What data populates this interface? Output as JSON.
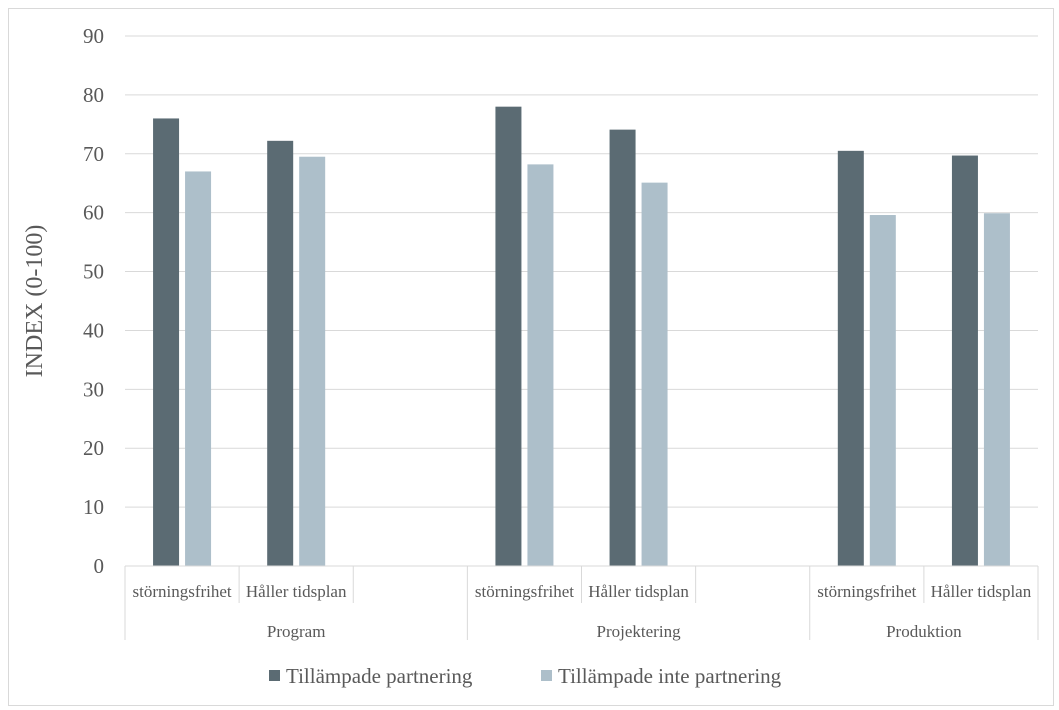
{
  "chart_data": {
    "type": "bar",
    "title": "",
    "ylabel": "INDEX (0-100)",
    "xlabel": "",
    "ylim": [
      0,
      90
    ],
    "yticks": [
      0,
      10,
      20,
      30,
      40,
      50,
      60,
      70,
      80,
      90
    ],
    "grid": true,
    "legend_position": "bottom",
    "groups": [
      {
        "label": "Program",
        "categories": [
          "störningsfrihet",
          "Håller tidsplan",
          ""
        ]
      },
      {
        "label": "Projektering",
        "categories": [
          "störningsfrihet",
          "Håller tidsplan",
          ""
        ]
      },
      {
        "label": "Produktion",
        "categories": [
          "störningsfrihet",
          "Håller tidsplan"
        ]
      }
    ],
    "series": [
      {
        "name": "Tillämpade partnering",
        "color": "#5b6b73",
        "values": [
          76,
          72.2,
          null,
          78,
          74.1,
          null,
          70.5,
          69.7
        ]
      },
      {
        "name": "Tillämpade inte partnering",
        "color": "#adbfca",
        "values": [
          67,
          69.5,
          null,
          68.2,
          65.1,
          null,
          59.6,
          59.9
        ]
      }
    ]
  }
}
